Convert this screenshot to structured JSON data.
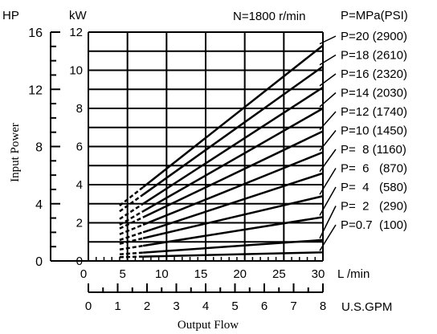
{
  "chart_data": {
    "type": "line",
    "condition": "N=1800 r/min",
    "legend_header": "P=MPa(PSI)",
    "xlabel": "Output Flow",
    "ylabel": "Input Power",
    "x_axis_primary": {
      "unit": "L /min",
      "range": [
        0,
        30
      ],
      "ticks": [
        "0",
        "5",
        "10",
        "15",
        "20",
        "25",
        "30"
      ]
    },
    "x_axis_secondary": {
      "unit": "U.S.GPM",
      "range": [
        0,
        8
      ],
      "ticks": [
        "0",
        "1",
        "2",
        "3",
        "4",
        "5",
        "6",
        "7",
        "8"
      ]
    },
    "y_axis_primary": {
      "unit": "kW",
      "range": [
        0,
        12
      ],
      "ticks": [
        "0",
        "2",
        "4",
        "6",
        "8",
        "10",
        "12"
      ]
    },
    "y_axis_secondary": {
      "unit": "HP",
      "range": [
        0,
        16
      ],
      "ticks": [
        "0",
        "4",
        "8",
        "12",
        "16"
      ]
    },
    "grid": true,
    "dashed_region_x_max_lpm": 7,
    "series": [
      {
        "name": "P=20 (2900)",
        "pressure": 20,
        "x": [
          4,
          30
        ],
        "y": [
          2.9,
          11.3
        ]
      },
      {
        "name": "P=18 (2610)",
        "pressure": 18,
        "x": [
          4,
          30
        ],
        "y": [
          2.6,
          10.2
        ]
      },
      {
        "name": "P=16 (2320)",
        "pressure": 16,
        "x": [
          4,
          30
        ],
        "y": [
          2.2,
          9.1
        ]
      },
      {
        "name": "P=14 (2030)",
        "pressure": 14,
        "x": [
          4,
          30
        ],
        "y": [
          1.9,
          8.0
        ]
      },
      {
        "name": "P=12 (1740)",
        "pressure": 12,
        "x": [
          4,
          30
        ],
        "y": [
          1.7,
          6.8
        ]
      },
      {
        "name": "P=10 (1450)",
        "pressure": 10,
        "x": [
          4,
          30
        ],
        "y": [
          1.4,
          5.7
        ]
      },
      {
        "name": "P=  8 (1160)",
        "pressure": 8,
        "x": [
          4,
          30
        ],
        "y": [
          1.1,
          4.6
        ]
      },
      {
        "name": "P=  6   (870)",
        "pressure": 6,
        "x": [
          4,
          30
        ],
        "y": [
          0.9,
          3.4
        ]
      },
      {
        "name": "P=  4   (580)",
        "pressure": 4,
        "x": [
          4,
          30
        ],
        "y": [
          0.6,
          2.3
        ]
      },
      {
        "name": "P=  2   (290)",
        "pressure": 2,
        "x": [
          4,
          30
        ],
        "y": [
          0.35,
          1.1
        ]
      },
      {
        "name": "P=0.7  (100)",
        "pressure": 0.7,
        "x": [
          4,
          30
        ],
        "y": [
          0.2,
          0.45
        ]
      }
    ]
  }
}
